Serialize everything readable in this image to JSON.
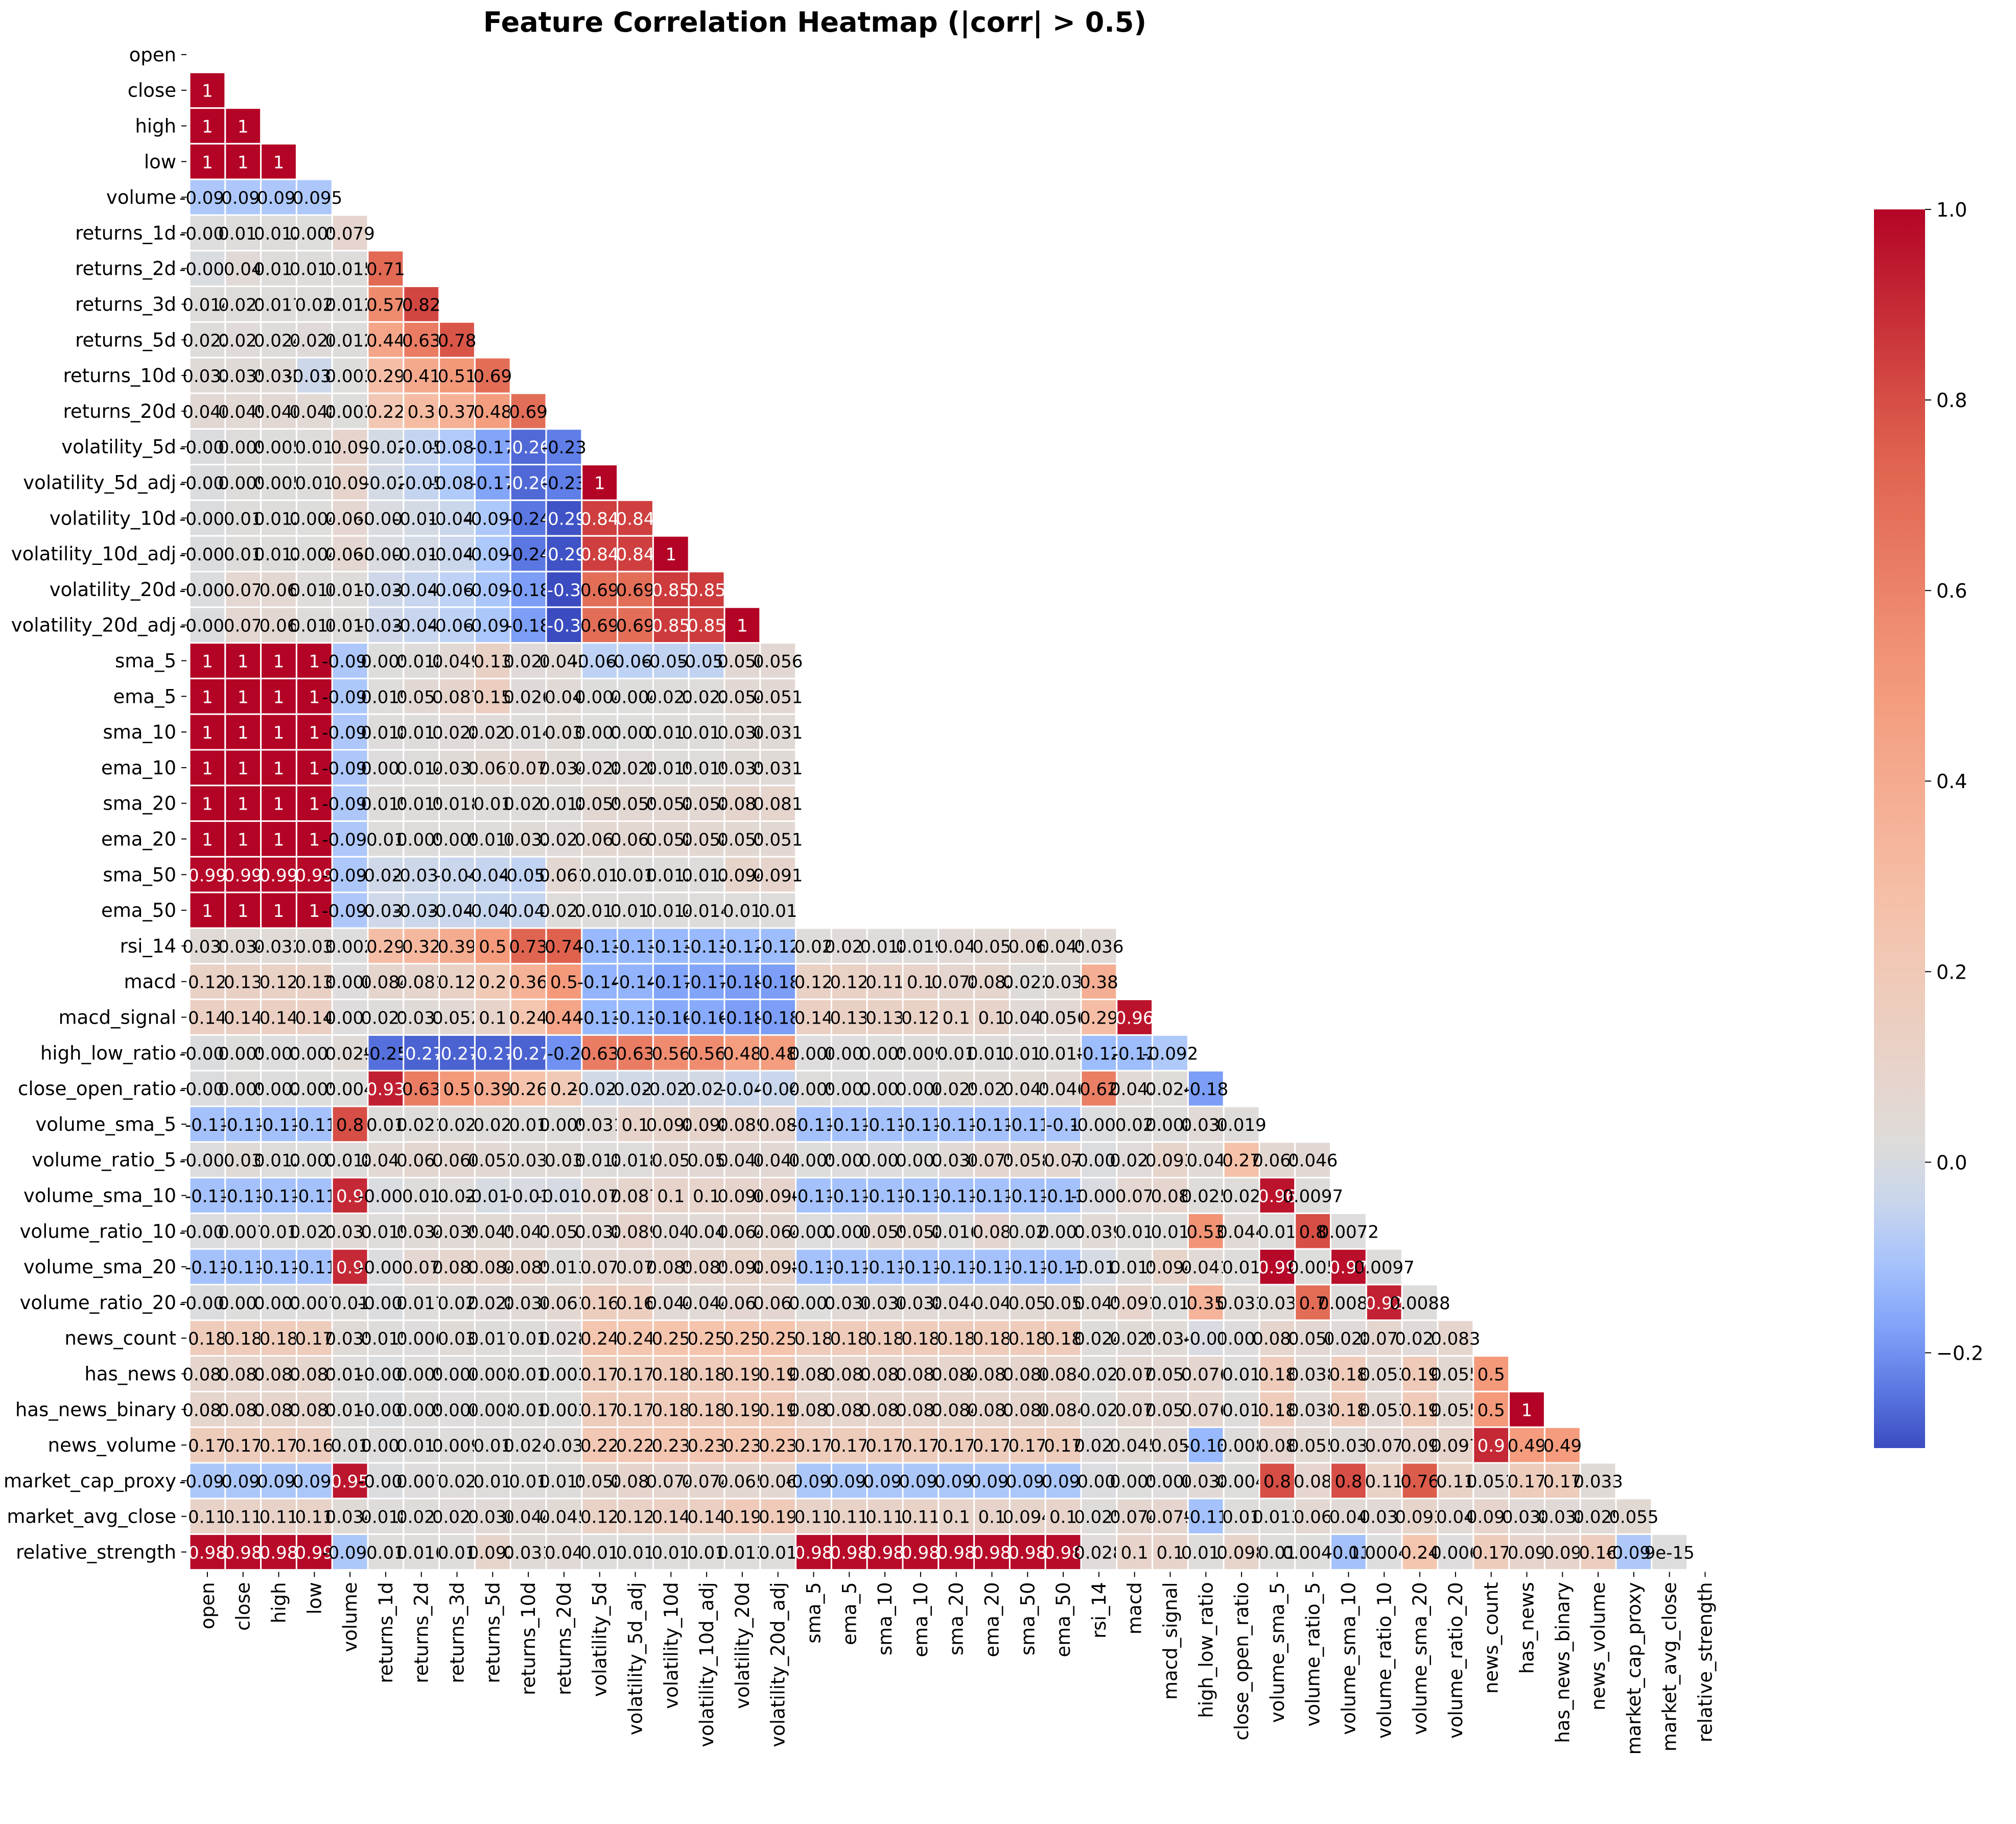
{
  "chart_data": {
    "type": "heatmap",
    "title": "Feature Correlation Heatmap (|corr| > 0.5)",
    "labels": [
      "open",
      "close",
      "high",
      "low",
      "volume",
      "returns_1d",
      "returns_2d",
      "returns_3d",
      "returns_5d",
      "returns_10d",
      "returns_20d",
      "volatility_5d",
      "volatility_5d_adj",
      "volatility_10d",
      "volatility_10d_adj",
      "volatility_20d",
      "volatility_20d_adj",
      "sma_5",
      "ema_5",
      "sma_10",
      "ema_10",
      "sma_20",
      "ema_20",
      "sma_50",
      "ema_50",
      "rsi_14",
      "macd",
      "macd_signal",
      "high_low_ratio",
      "close_open_ratio",
      "volume_sma_5",
      "volume_ratio_5",
      "volume_sma_10",
      "volume_ratio_10",
      "volume_sma_20",
      "volume_ratio_20",
      "news_count",
      "has_news",
      "has_news_binary",
      "news_volume",
      "market_cap_proxy",
      "market_avg_close",
      "relative_strength"
    ],
    "mask": "upper triangle including diagonal",
    "annotations": true,
    "colormap": "coolwarm",
    "vmin": -0.3,
    "vmax": 1.0,
    "colorbar_ticks": [
      -0.2,
      0.0,
      0.2,
      0.4,
      0.6,
      0.8,
      1.0
    ],
    "colorbar_tick_labels": [
      "−0.2",
      "0.0",
      "0.2",
      "0.4",
      "0.6",
      "0.8",
      "1.0"
    ],
    "rows": [
      [],
      [
        1
      ],
      [
        1,
        1
      ],
      [
        1,
        1,
        1
      ],
      [
        -0.095,
        -0.095,
        -0.095,
        -0.095
      ],
      [
        -0.001,
        0.011,
        0.012,
        0.005,
        0.079
      ],
      [
        -0.008,
        0.04,
        0.017,
        0.013,
        0.015,
        0.71
      ],
      [
        0.014,
        0.021,
        0.017,
        0.02,
        0.012,
        0.57,
        0.82
      ],
      [
        0.022,
        0.027,
        0.024,
        0.026,
        0.012,
        0.44,
        0.63,
        0.78
      ],
      [
        0.032,
        0.035,
        0.032,
        -0.035,
        0.003,
        0.29,
        0.41,
        0.51,
        0.69
      ],
      [
        0.046,
        0.049,
        0.046,
        0.048,
        0.003,
        0.22,
        0.3,
        0.37,
        0.48,
        0.69
      ],
      [
        -0.006,
        0.009,
        0.005,
        0.01,
        0.09,
        -0.02,
        -0.05,
        -0.089,
        -0.17,
        -0.26,
        -0.23
      ],
      [
        -0.006,
        0.009,
        0.005,
        0.01,
        0.09,
        -0.02,
        -0.05,
        -0.089,
        -0.17,
        -0.26,
        -0.23,
        1
      ],
      [
        -0.006,
        0.01,
        0.012,
        0.004,
        0.068,
        -0.009,
        -0.019,
        -0.041,
        -0.094,
        -0.24,
        -0.29,
        0.84,
        0.84
      ],
      [
        -0.006,
        0.01,
        0.012,
        0.004,
        0.068,
        -0.009,
        -0.019,
        -0.041,
        -0.094,
        -0.24,
        -0.29,
        0.84,
        0.84,
        1
      ],
      [
        -0.005,
        0.07,
        0.06,
        0.016,
        0.017,
        -0.032,
        -0.045,
        -0.065,
        -0.098,
        -0.18,
        -0.3,
        0.69,
        0.69,
        0.85,
        0.85
      ],
      [
        -0.005,
        0.07,
        0.06,
        0.016,
        0.017,
        -0.032,
        -0.045,
        -0.065,
        -0.098,
        -0.18,
        -0.3,
        0.69,
        0.69,
        0.85,
        0.85,
        1
      ],
      [
        1,
        1,
        1,
        1,
        -0.095,
        0.005,
        0.018,
        0.049,
        0.13,
        0.026,
        0.042,
        -0.065,
        -0.065,
        -0.055,
        -0.055,
        0.056,
        0.056
      ],
      [
        1,
        1,
        1,
        1,
        -0.096,
        0.019,
        0.053,
        0.087,
        0.15,
        0.026,
        0.04,
        0.004,
        0.004,
        0.022,
        0.022,
        0.054,
        0.051
      ],
      [
        1,
        1,
        1,
        1,
        -0.095,
        0.018,
        0.011,
        0.028,
        0.027,
        0.014,
        0.03,
        0.003,
        0.003,
        0.017,
        0.017,
        0.036,
        0.031
      ],
      [
        1,
        1,
        1,
        1,
        -0.095,
        0.007,
        0.014,
        0.033,
        0.061,
        0.07,
        0.034,
        0.028,
        0.028,
        0.019,
        0.019,
        0.035,
        0.031
      ],
      [
        1,
        1,
        1,
        1,
        -0.095,
        0.019,
        0.019,
        0.018,
        0.01,
        0.023,
        0.018,
        0.059,
        0.059,
        0.058,
        0.058,
        0.087,
        0.081
      ],
      [
        1,
        1,
        1,
        1,
        -0.095,
        0.01,
        0.009,
        0.009,
        0.016,
        0.032,
        0.027,
        0.063,
        0.063,
        0.058,
        0.058,
        0.055,
        0.051
      ],
      [
        0.99,
        0.99,
        0.99,
        0.99,
        -0.095,
        -0.029,
        -0.035,
        -0.04,
        -0.047,
        -0.057,
        0.061,
        0.01,
        0.01,
        0.012,
        0.012,
        0.094,
        0.091
      ],
      [
        1,
        1,
        1,
        1,
        -0.095,
        -0.031,
        -0.036,
        -0.041,
        -0.046,
        -0.045,
        0.021,
        0.013,
        0.013,
        0.014,
        0.014,
        0.01,
        0.01
      ],
      [
        0.031,
        0.034,
        0.032,
        0.03,
        0.002,
        0.29,
        0.32,
        0.39,
        0.5,
        0.73,
        0.74,
        -0.13,
        -0.13,
        -0.13,
        -0.13,
        -0.12,
        -0.12,
        0.02,
        0.027,
        0.018,
        0.019,
        0.04,
        0.05,
        0.06,
        0.045,
        0.036
      ],
      [
        0.12,
        0.13,
        0.12,
        0.13,
        0.006,
        0.084,
        0.081,
        0.12,
        0.2,
        0.36,
        0.5,
        -0.14,
        -0.14,
        -0.17,
        -0.17,
        -0.18,
        -0.18,
        0.12,
        0.12,
        0.11,
        0.1,
        0.078,
        0.082,
        0.022,
        0.03,
        0.38
      ],
      [
        0.14,
        0.14,
        0.14,
        0.14,
        0.007,
        0.021,
        0.033,
        0.052,
        0.1,
        0.24,
        0.44,
        -0.13,
        -0.13,
        -0.16,
        -0.16,
        -0.18,
        -0.18,
        0.14,
        0.13,
        0.13,
        0.12,
        0.1,
        0.1,
        0.041,
        0.056,
        0.29,
        0.96
      ],
      [
        -0.004,
        0.005,
        0.001,
        0.007,
        0.029,
        -0.25,
        -0.27,
        -0.27,
        -0.27,
        -0.27,
        -0.2,
        0.63,
        0.63,
        0.56,
        0.56,
        0.48,
        0.48,
        0.006,
        0.007,
        0.005,
        0.009,
        0.01,
        0.012,
        0.017,
        0.018,
        -0.12,
        -0.12,
        -0.092
      ],
      [
        -0.006,
        0.009,
        0.002,
        0.005,
        0.004,
        0.93,
        0.63,
        0.5,
        0.39,
        0.26,
        0.2,
        -0.025,
        -0.025,
        -0.022,
        -0.022,
        -0.04,
        -0.04,
        0.009,
        0.002,
        0.007,
        0.006,
        0.029,
        0.027,
        0.045,
        0.046,
        0.62,
        0.042,
        0.024,
        -0.18
      ],
      [
        -0.11,
        -0.11,
        -0.11,
        -0.11,
        0.8,
        0.01,
        0.021,
        0.02,
        0.02,
        0.01,
        0.009,
        0.031,
        0.1,
        0.098,
        0.098,
        0.089,
        0.08,
        -0.11,
        -0.11,
        -0.11,
        -0.11,
        -0.11,
        -0.11,
        -0.11,
        -0.1,
        -0.007,
        0.02,
        0.008,
        0.036,
        0.019
      ],
      [
        -0.003,
        0.03,
        0.012,
        0.003,
        0.018,
        0.047,
        0.067,
        0.066,
        0.052,
        0.03,
        0.03,
        0.018,
        0.018,
        0.05,
        0.05,
        0.046,
        0.046,
        0.005,
        0.007,
        0.007,
        0.003,
        0.036,
        0.075,
        0.058,
        0.07,
        -0.005,
        0.027,
        0.093,
        0.04,
        0.27,
        0.065,
        0.046
      ],
      [
        -0.11,
        -0.11,
        -0.11,
        -0.11,
        0.9,
        -0.008,
        0.01,
        0.02,
        -0.014,
        -0.01,
        -0.016,
        0.07,
        0.087,
        0.1,
        0.1,
        0.096,
        0.096,
        -0.11,
        -0.11,
        -0.11,
        -0.11,
        -0.11,
        -0.11,
        -0.11,
        -0.11,
        -0.009,
        0.07,
        0.08,
        0.025,
        0.02,
        0.96,
        0.0097
      ],
      [
        -0.007,
        0.007,
        0.01,
        0.023,
        0.037,
        0.019,
        0.034,
        0.039,
        0.045,
        0.042,
        0.053,
        0.038,
        0.089,
        0.04,
        0.04,
        0.064,
        0.064,
        0.002,
        0.006,
        0.059,
        0.058,
        0.016,
        0.08,
        0.02,
        0.001,
        0.039,
        0.01,
        0.01,
        0.53,
        0.044,
        0.01,
        0.8,
        0.0072
      ],
      [
        -0.11,
        -0.11,
        -0.11,
        -0.11,
        0.9,
        -0.006,
        0.07,
        0.083,
        0.084,
        0.085,
        0.013,
        0.07,
        0.07,
        0.085,
        0.085,
        0.098,
        0.098,
        -0.11,
        -0.11,
        -0.11,
        -0.11,
        -0.11,
        -0.11,
        -0.11,
        -0.11,
        -0.015,
        0.015,
        0.094,
        0.041,
        0.01,
        0.99,
        0.005,
        0.97,
        0.0097
      ],
      [
        -0.004,
        0.003,
        0.001,
        0.007,
        0.01,
        -0.005,
        0.017,
        0.02,
        0.028,
        0.036,
        0.061,
        0.16,
        0.16,
        0.044,
        0.044,
        0.067,
        0.067,
        0.003,
        0.036,
        0.036,
        0.038,
        0.044,
        0.04,
        0.05,
        0.05,
        0.045,
        0.091,
        0.01,
        0.35,
        0.033,
        0.03,
        0.7,
        0.0088,
        0.92,
        0.0088
      ],
      [
        0.18,
        0.18,
        0.18,
        0.17,
        0.035,
        0.015,
        0.006,
        0.03,
        0.017,
        0.01,
        0.028,
        0.24,
        0.24,
        0.25,
        0.25,
        0.25,
        0.25,
        0.18,
        0.18,
        0.18,
        0.18,
        0.18,
        0.18,
        0.18,
        0.18,
        0.024,
        0.029,
        0.034,
        -0.01,
        0.007,
        0.083,
        0.056,
        0.028,
        0.073,
        0.027,
        0.083
      ],
      [
        0.083,
        0.083,
        0.083,
        0.081,
        0.016,
        -0.006,
        0.009,
        0.006,
        0.008,
        0.01,
        0.003,
        0.17,
        0.17,
        0.18,
        0.18,
        0.19,
        0.19,
        0.083,
        0.083,
        0.083,
        0.083,
        0.084,
        0.083,
        0.086,
        0.084,
        0.02,
        0.07,
        0.057,
        0.076,
        0.01,
        0.18,
        0.038,
        0.18,
        0.053,
        0.19,
        0.055,
        0.5
      ],
      [
        0.083,
        0.083,
        0.083,
        0.081,
        0.016,
        -0.006,
        0.009,
        0.006,
        0.008,
        0.01,
        0.003,
        0.17,
        0.17,
        0.18,
        0.18,
        0.19,
        0.19,
        0.083,
        0.083,
        0.083,
        0.083,
        0.084,
        0.083,
        0.086,
        0.084,
        0.02,
        0.07,
        0.057,
        0.076,
        0.01,
        0.18,
        0.038,
        0.18,
        0.053,
        0.19,
        0.055,
        0.5,
        1
      ],
      [
        0.17,
        0.17,
        0.17,
        0.16,
        0.01,
        0.007,
        0.011,
        0.009,
        0.01,
        0.024,
        0.03,
        0.22,
        0.22,
        0.23,
        0.23,
        0.23,
        0.23,
        0.17,
        0.17,
        0.17,
        0.17,
        0.17,
        0.17,
        0.17,
        0.17,
        0.027,
        0.045,
        0.05,
        -0.13,
        0.008,
        0.08,
        0.055,
        0.03,
        0.07,
        0.09,
        0.097,
        0.9,
        0.49,
        0.49
      ],
      [
        -0.097,
        -0.097,
        -0.097,
        -0.097,
        0.95,
        -0.006,
        0.007,
        0.02,
        0.01,
        0.01,
        0.015,
        0.058,
        0.087,
        0.074,
        0.074,
        0.065,
        0.06,
        -0.097,
        -0.097,
        -0.097,
        -0.097,
        -0.097,
        -0.097,
        -0.097,
        -0.097,
        -0.007,
        0.005,
        0.006,
        0.038,
        0.004,
        0.8,
        0.08,
        0.8,
        0.11,
        0.76,
        0.11,
        0.053,
        0.17,
        0.17,
        0.033
      ],
      [
        0.11,
        0.11,
        0.11,
        0.11,
        0.034,
        0.018,
        0.023,
        0.027,
        0.036,
        0.044,
        0.045,
        0.12,
        0.12,
        0.14,
        0.14,
        0.19,
        0.19,
        0.11,
        0.11,
        0.11,
        0.11,
        0.1,
        0.1,
        0.094,
        0.1,
        0.025,
        0.074,
        0.079,
        -0.11,
        0.01,
        0.013,
        0.06,
        0.04,
        0.037,
        0.093,
        0.04,
        0.091,
        0.038,
        0.038,
        0.029,
        0.055
      ],
      [
        0.98,
        0.98,
        0.98,
        0.99,
        -0.096,
        0.01,
        0.016,
        0.01,
        0.092,
        0.031,
        0.04,
        0.01,
        0.01,
        0.01,
        0.01,
        0.013,
        0.01,
        0.98,
        0.98,
        0.98,
        0.98,
        0.98,
        0.98,
        0.98,
        0.98,
        0.028,
        0.1,
        0.1,
        0.013,
        0.098,
        0.01,
        0.0049,
        -0.11,
        0.00049,
        0.24,
        0.006,
        0.17,
        0.09,
        0.09,
        0.16,
        -0.093,
        9e-15
      ]
    ],
    "last_row_final_label": "9e-15"
  }
}
